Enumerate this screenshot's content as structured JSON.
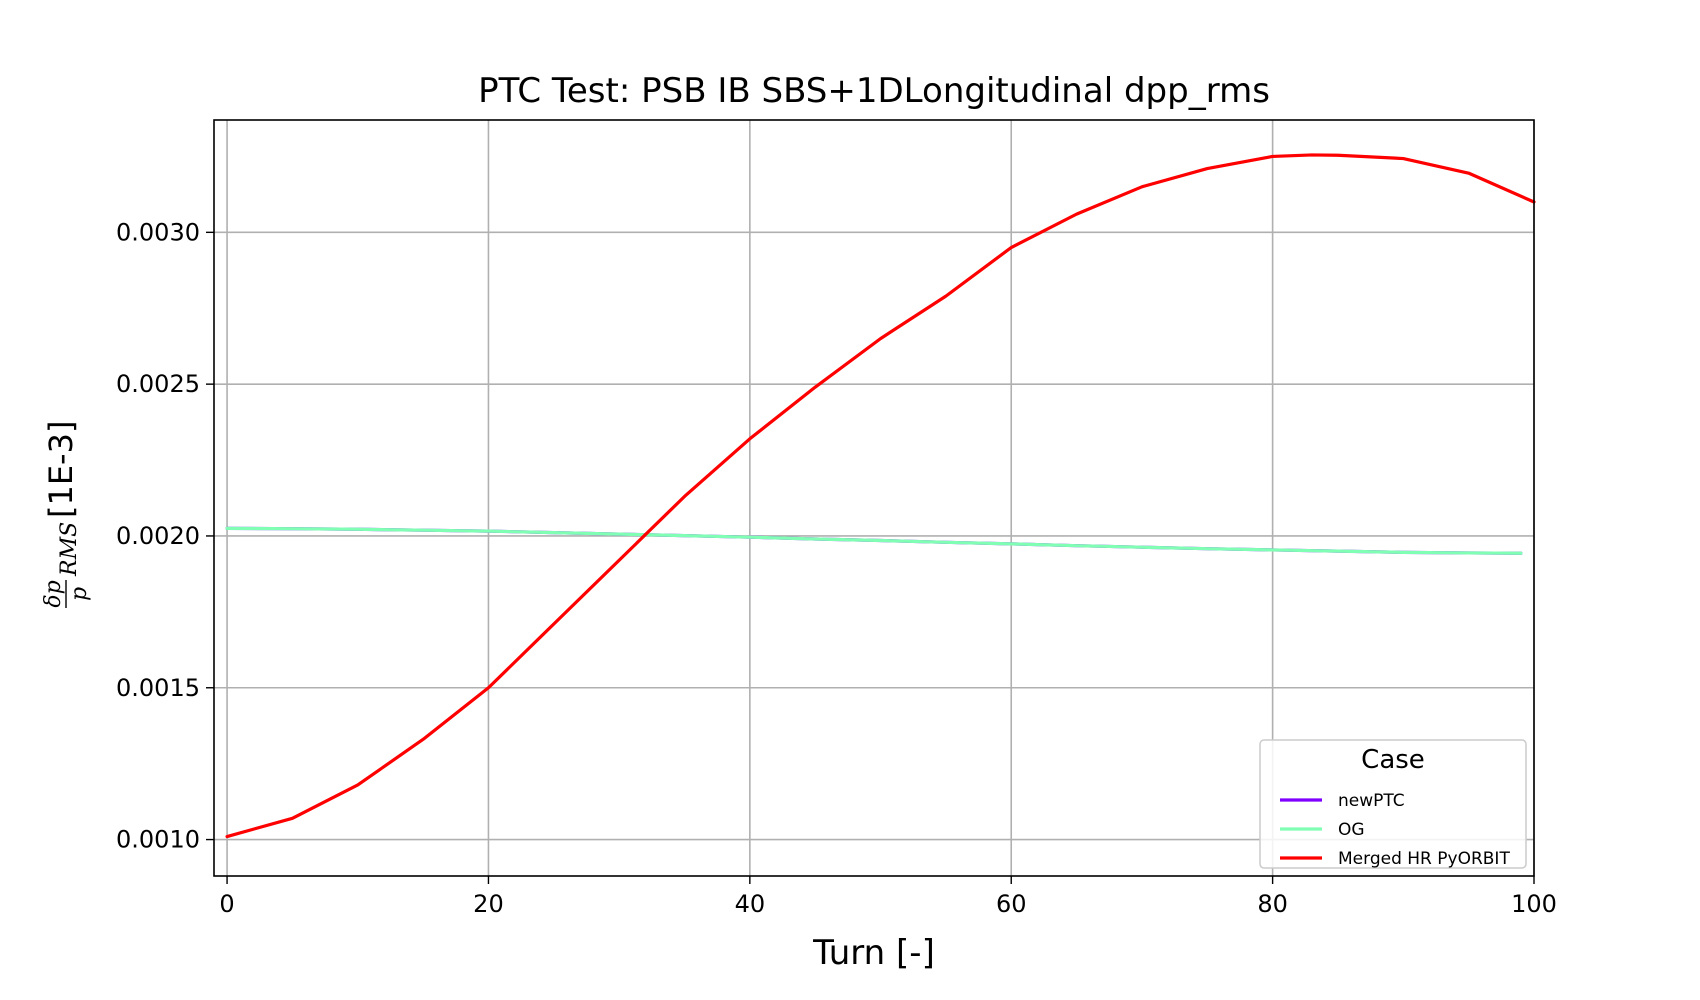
{
  "chart_data": {
    "type": "line",
    "title": "PTC Test: PSB IB SBS+1DLongitudinal dpp_rms",
    "xlabel": "Turn [-]",
    "ylabel": {
      "numerator": "δp",
      "denominator": "p",
      "subscript": "RMS",
      "suffix": " [1E-3]"
    },
    "xlim": [
      -1,
      100
    ],
    "ylim": [
      0.00088,
      0.00337
    ],
    "xticks": [
      0,
      20,
      40,
      60,
      80,
      100
    ],
    "xtick_labels": [
      "0",
      "20",
      "40",
      "60",
      "80",
      "100"
    ],
    "yticks": [
      0.001,
      0.0015,
      0.002,
      0.0025,
      0.003
    ],
    "ytick_labels": [
      "0.0010",
      "0.0015",
      "0.0020",
      "0.0025",
      "0.0030"
    ],
    "grid": true,
    "legend": {
      "title": "Case",
      "placement": "lower-right"
    },
    "series": [
      {
        "name": "newPTC",
        "color": "#8000ff",
        "x": [
          0,
          5,
          10,
          15,
          20,
          25,
          30,
          35,
          40,
          45,
          50,
          55,
          60,
          65,
          70,
          75,
          80,
          85,
          90,
          95,
          99
        ],
        "y": [
          0.002025,
          0.002024,
          0.002022,
          0.002019,
          0.002016,
          0.002011,
          0.002006,
          0.002001,
          0.001996,
          0.00199,
          0.001985,
          0.001979,
          0.001974,
          0.001968,
          0.001963,
          0.001958,
          0.001954,
          0.00195,
          0.001946,
          0.001944,
          0.001943
        ]
      },
      {
        "name": "OG",
        "color": "#80ffb4",
        "x": [
          0,
          5,
          10,
          15,
          20,
          25,
          30,
          35,
          40,
          45,
          50,
          55,
          60,
          65,
          70,
          75,
          80,
          85,
          90,
          95,
          99
        ],
        "y": [
          0.002025,
          0.002024,
          0.002022,
          0.002019,
          0.002016,
          0.002011,
          0.002006,
          0.002001,
          0.001996,
          0.00199,
          0.001985,
          0.001979,
          0.001974,
          0.001968,
          0.001963,
          0.001958,
          0.001954,
          0.00195,
          0.001946,
          0.001944,
          0.001943
        ]
      },
      {
        "name": "Merged HR PyORBIT",
        "color": "#ff0000",
        "x": [
          0,
          5,
          10,
          15,
          20,
          25,
          30,
          35,
          40,
          45,
          50,
          55,
          60,
          65,
          70,
          75,
          80,
          83,
          85,
          90,
          95,
          100
        ],
        "y": [
          0.00101,
          0.00107,
          0.00118,
          0.00133,
          0.0015,
          0.00171,
          0.00192,
          0.00213,
          0.00232,
          0.00249,
          0.00265,
          0.00279,
          0.00295,
          0.00306,
          0.00315,
          0.00321,
          0.00325,
          0.003255,
          0.003254,
          0.003243,
          0.003195,
          0.0031
        ]
      }
    ]
  }
}
